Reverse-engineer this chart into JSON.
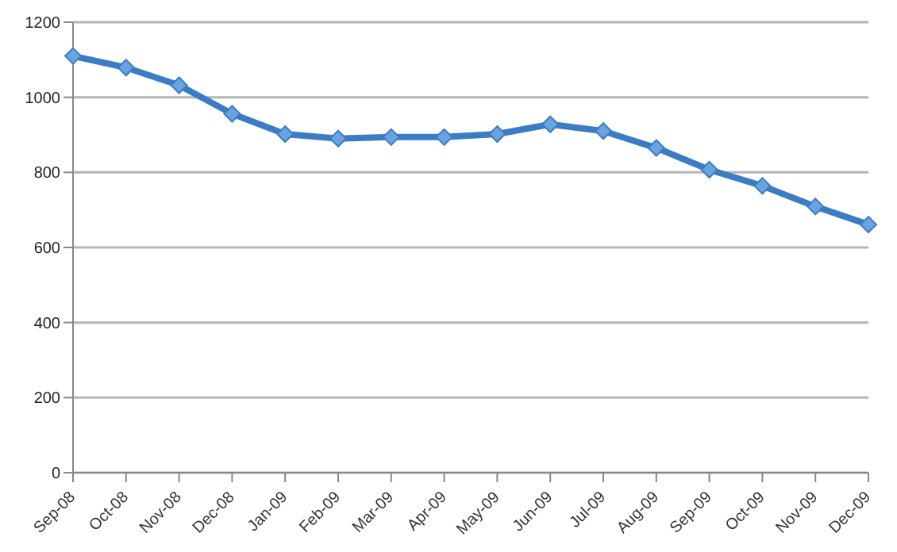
{
  "chart_data": {
    "type": "line",
    "categories": [
      "Sep-08",
      "Oct-08",
      "Nov-08",
      "Dec-08",
      "Jan-09",
      "Feb-09",
      "Mar-09",
      "Apr-09",
      "May-09",
      "Jun-09",
      "Jul-09",
      "Aug-09",
      "Sep-09",
      "Oct-09",
      "Nov-09",
      "Dec-09"
    ],
    "series": [
      {
        "color": "#3a7dc4",
        "values": [
          1110,
          1079,
          1032,
          956,
          902,
          890,
          894,
          894,
          902,
          928,
          910,
          865,
          807,
          764,
          709,
          661
        ]
      }
    ],
    "ylim": [
      0,
      1200
    ],
    "yticks": [
      0,
      200,
      400,
      600,
      800,
      1000,
      1200
    ],
    "grid": "y",
    "marker": "diamond",
    "legend": false
  }
}
